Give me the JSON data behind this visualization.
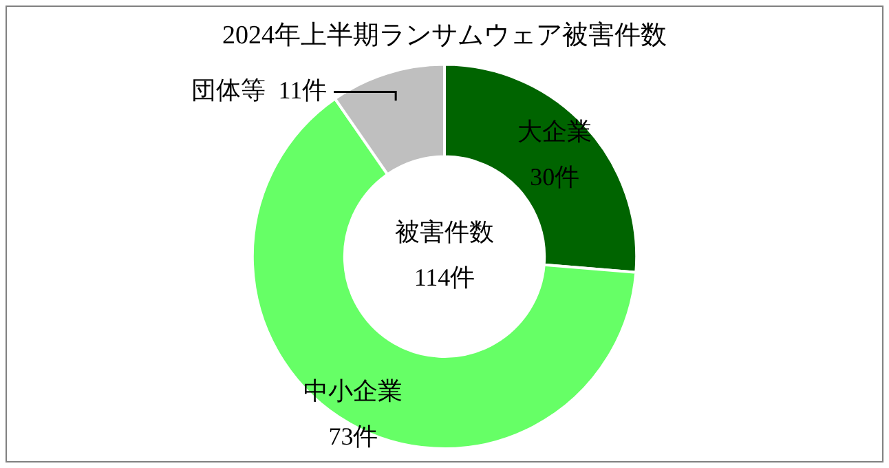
{
  "chart_data": {
    "type": "donut",
    "title": "2024年上半期ランサムウェア被害件数",
    "categories": [
      "大企業",
      "中小企業",
      "団体等"
    ],
    "values": [
      30,
      73,
      11
    ],
    "value_labels": [
      "30件",
      "73件",
      "11件"
    ],
    "colors": [
      "#006400",
      "#66ff66",
      "#bfbfbf"
    ],
    "annotations": [
      "被害件数",
      "114件"
    ],
    "legend": false
  }
}
